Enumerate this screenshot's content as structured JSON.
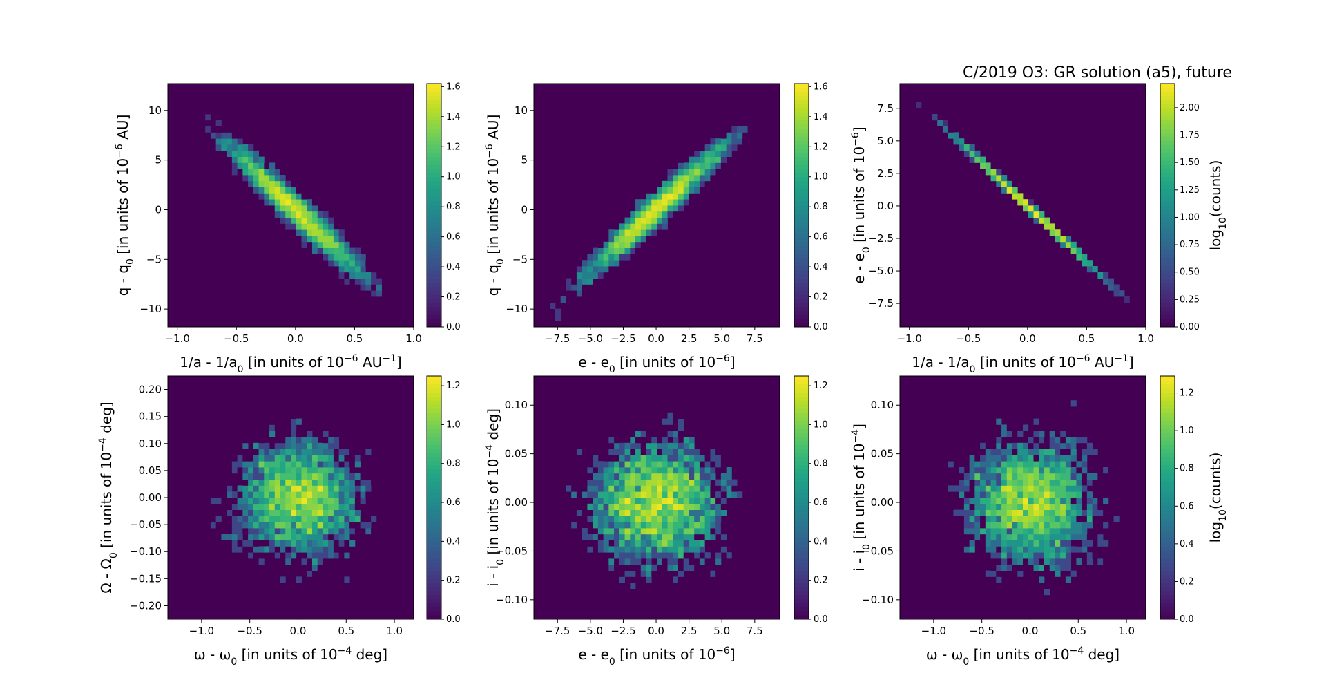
{
  "figure": {
    "title": "C/2019 O3: GR solution (a5), future"
  },
  "chart_data": [
    {
      "type": "heatmap",
      "panel": "top-left",
      "xlabel": "1/a - 1/a0 [in units of 10-6 AU-1]",
      "ylabel": "q - q0 [in units of 10-6 AU]",
      "xlim": [
        -1.08,
        1.0
      ],
      "ylim": [
        -11.8,
        12.7
      ],
      "xticks": [
        -1.0,
        -0.5,
        0.0,
        0.5,
        1.0
      ],
      "xtick_labels": [
        "−1.0",
        "−0.5",
        "0.0",
        "0.5",
        "1.0"
      ],
      "yticks": [
        -10,
        -5,
        0,
        5,
        10
      ],
      "ytick_labels": [
        "−10",
        "−5",
        "0",
        "5",
        "10"
      ],
      "distribution": {
        "shape": "correlated",
        "x_sigma": 0.28,
        "y_sigma": 3.3,
        "correlation": -0.97,
        "n_points": 3000
      },
      "colorbar": {
        "label": "",
        "lim": [
          0.0,
          1.62
        ],
        "ticks": [
          0.0,
          0.2,
          0.4,
          0.6,
          0.8,
          1.0,
          1.2,
          1.4,
          1.6
        ],
        "tick_labels": [
          "0.0",
          "0.2",
          "0.4",
          "0.6",
          "0.8",
          "1.0",
          "1.2",
          "1.4",
          "1.6"
        ]
      },
      "colormap": "viridis"
    },
    {
      "type": "heatmap",
      "panel": "top-middle",
      "xlabel": "e - e0 [in units of 10-6]",
      "ylabel": "q - q0 [in units of 10-6 AU]",
      "xlim": [
        -9.3,
        9.4
      ],
      "ylim": [
        -11.8,
        12.7
      ],
      "xticks": [
        -7.5,
        -5.0,
        -2.5,
        0.0,
        2.5,
        5.0,
        7.5
      ],
      "xtick_labels": [
        "−7.5",
        "−5.0",
        "−2.5",
        "0.0",
        "2.5",
        "5.0",
        "7.5"
      ],
      "yticks": [
        -10,
        -5,
        0,
        5,
        10
      ],
      "ytick_labels": [
        "−10",
        "−5",
        "0",
        "5",
        "10"
      ],
      "distribution": {
        "shape": "correlated",
        "x_sigma": 2.6,
        "y_sigma": 3.3,
        "correlation": 0.97,
        "n_points": 3000
      },
      "colorbar": {
        "label": "",
        "lim": [
          0.0,
          1.62
        ],
        "ticks": [
          0.0,
          0.2,
          0.4,
          0.6,
          0.8,
          1.0,
          1.2,
          1.4,
          1.6
        ],
        "tick_labels": [
          "0.0",
          "0.2",
          "0.4",
          "0.6",
          "0.8",
          "1.0",
          "1.2",
          "1.4",
          "1.6"
        ]
      },
      "colormap": "viridis"
    },
    {
      "type": "heatmap",
      "panel": "top-right",
      "xlabel": "1/a - 1/a0 [in units of 10-6 AU-1]",
      "ylabel": "e - e0 [in units of 10-6]",
      "xlim": [
        -1.08,
        1.0
      ],
      "ylim": [
        -9.3,
        9.4
      ],
      "xticks": [
        -1.0,
        -0.5,
        0.0,
        0.5,
        1.0
      ],
      "xtick_labels": [
        "−1.0",
        "−0.5",
        "0.0",
        "0.5",
        "1.0"
      ],
      "yticks": [
        -7.5,
        -5.0,
        -2.5,
        0.0,
        2.5,
        5.0,
        7.5
      ],
      "ytick_labels": [
        "−7.5",
        "−5.0",
        "−2.5",
        "0.0",
        "2.5",
        "5.0",
        "7.5"
      ],
      "distribution": {
        "shape": "line",
        "x_sigma": 0.28,
        "slope": -8.6,
        "n_points": 3000
      },
      "colorbar": {
        "label": "log10(counts)",
        "lim": [
          0.0,
          2.22
        ],
        "ticks": [
          0.0,
          0.25,
          0.5,
          0.75,
          1.0,
          1.25,
          1.5,
          1.75,
          2.0
        ],
        "tick_labels": [
          "0.00",
          "0.25",
          "0.50",
          "0.75",
          "1.00",
          "1.25",
          "1.50",
          "1.75",
          "2.00"
        ]
      },
      "colormap": "viridis"
    },
    {
      "type": "heatmap",
      "panel": "bottom-left",
      "xlabel": "ω - ω0 [in units of 10-4 deg]",
      "ylabel": "Ω - Ω0 [in units of 10-4 deg]",
      "xlim": [
        -1.35,
        1.2
      ],
      "ylim": [
        -0.225,
        0.225
      ],
      "xticks": [
        -1.0,
        -0.5,
        0.0,
        0.5,
        1.0
      ],
      "xtick_labels": [
        "−1.0",
        "−0.5",
        "0.0",
        "0.5",
        "1.0"
      ],
      "yticks": [
        -0.2,
        -0.15,
        -0.1,
        -0.05,
        0.0,
        0.05,
        0.1,
        0.15,
        0.2
      ],
      "ytick_labels": [
        "−0.20",
        "−0.15",
        "−0.10",
        "−0.05",
        "0.00",
        "0.05",
        "0.10",
        "0.15",
        "0.20"
      ],
      "distribution": {
        "shape": "round",
        "x_sigma": 0.33,
        "y_sigma": 0.055,
        "n_points": 3000
      },
      "colorbar": {
        "label": "",
        "lim": [
          0.0,
          1.25
        ],
        "ticks": [
          0.0,
          0.2,
          0.4,
          0.6,
          0.8,
          1.0,
          1.2
        ],
        "tick_labels": [
          "0.0",
          "0.2",
          "0.4",
          "0.6",
          "0.8",
          "1.0",
          "1.2"
        ]
      },
      "colormap": "viridis"
    },
    {
      "type": "heatmap",
      "panel": "bottom-middle",
      "xlabel": "e - e0 [in units of 10-6]",
      "ylabel": "i - i0 [in units of 10-4 deg]",
      "xlim": [
        -9.3,
        9.4
      ],
      "ylim": [
        -0.12,
        0.13
      ],
      "xticks": [
        -7.5,
        -5.0,
        -2.5,
        0.0,
        2.5,
        5.0,
        7.5
      ],
      "xtick_labels": [
        "−7.5",
        "−5.0",
        "−2.5",
        "0.0",
        "2.5",
        "5.0",
        "7.5"
      ],
      "yticks": [
        -0.1,
        -0.05,
        0.0,
        0.05,
        0.1
      ],
      "ytick_labels": [
        "−0.10",
        "−0.05",
        "0.00",
        "0.05",
        "0.10"
      ],
      "distribution": {
        "shape": "round",
        "x_sigma": 2.6,
        "y_sigma": 0.033,
        "n_points": 3000
      },
      "colorbar": {
        "label": "",
        "lim": [
          0.0,
          1.25
        ],
        "ticks": [
          0.0,
          0.2,
          0.4,
          0.6,
          0.8,
          1.0,
          1.2
        ],
        "tick_labels": [
          "0.0",
          "0.2",
          "0.4",
          "0.6",
          "0.8",
          "1.0",
          "1.2"
        ]
      },
      "colormap": "viridis"
    },
    {
      "type": "heatmap",
      "panel": "bottom-right",
      "xlabel": "ω - ω0 [in units of 10-4 deg]",
      "ylabel": "i - i0 [in units of 10-4]",
      "xlim": [
        -1.35,
        1.2
      ],
      "ylim": [
        -0.12,
        0.13
      ],
      "xticks": [
        -1.0,
        -0.5,
        0.0,
        0.5,
        1.0
      ],
      "xtick_labels": [
        "−1.0",
        "−0.5",
        "0.0",
        "0.5",
        "1.0"
      ],
      "yticks": [
        -0.1,
        -0.05,
        0.0,
        0.05,
        0.1
      ],
      "ytick_labels": [
        "−0.10",
        "−0.05",
        "0.00",
        "0.05",
        "0.10"
      ],
      "distribution": {
        "shape": "round",
        "x_sigma": 0.33,
        "y_sigma": 0.033,
        "n_points": 3000
      },
      "colorbar": {
        "label": "log10(counts)",
        "lim": [
          0.0,
          1.29
        ],
        "ticks": [
          0.0,
          0.2,
          0.4,
          0.6,
          0.8,
          1.0,
          1.2
        ],
        "tick_labels": [
          "0.0",
          "0.2",
          "0.4",
          "0.6",
          "0.8",
          "1.0",
          "1.2"
        ]
      },
      "colormap": "viridis"
    }
  ]
}
